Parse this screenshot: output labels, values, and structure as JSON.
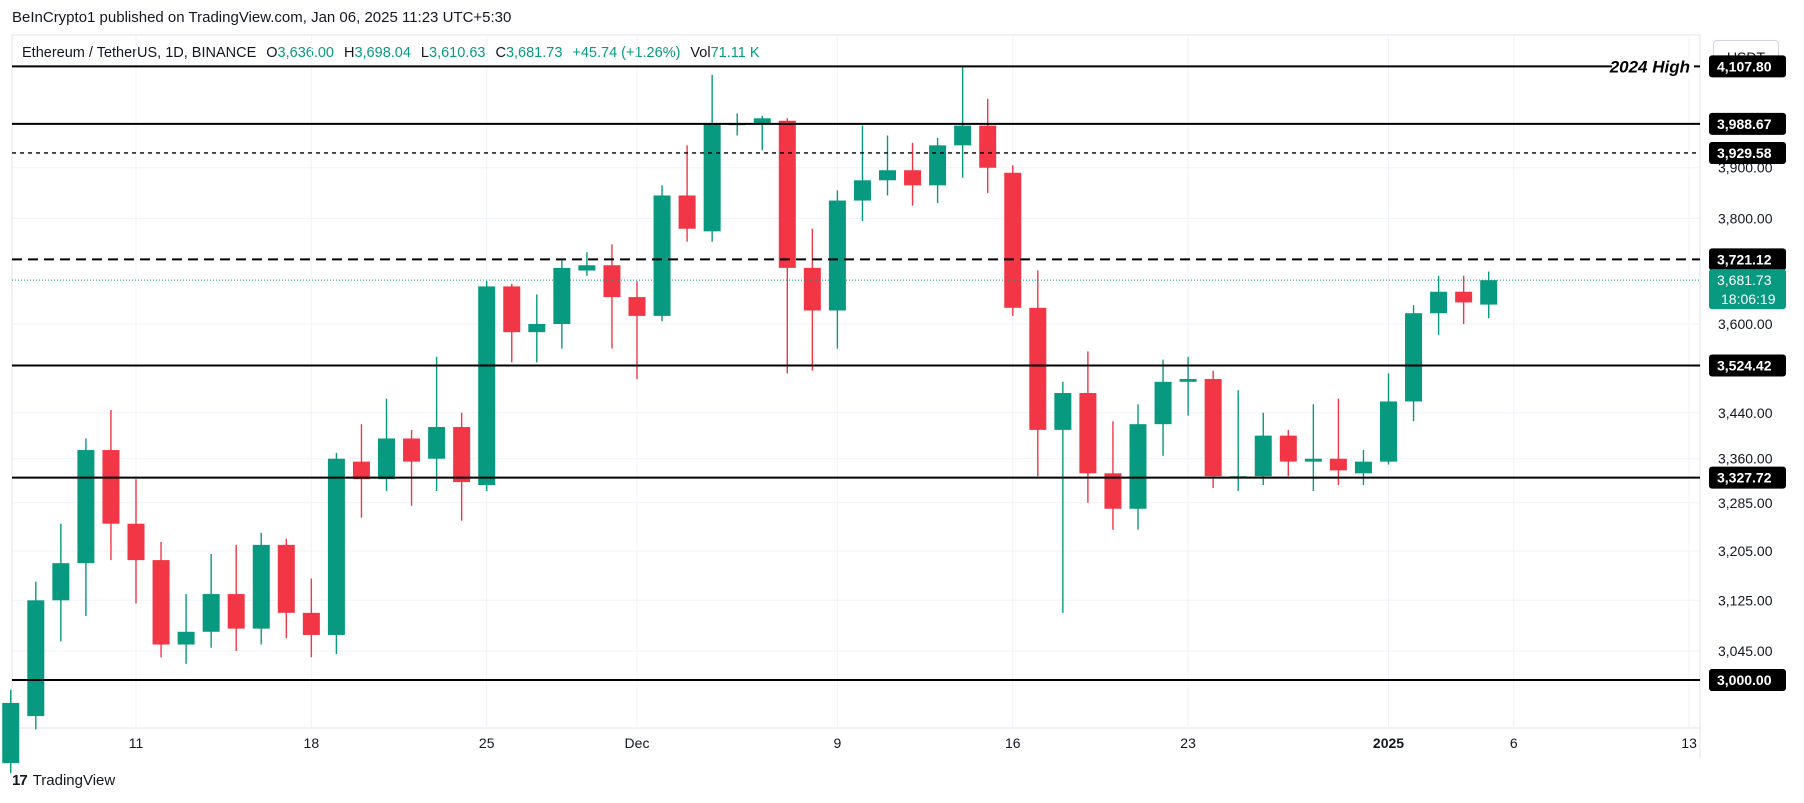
{
  "publisher": "BeInCrypto1 published on TradingView.com, Jan 06, 2025 11:23 UTC+5:30",
  "footer": {
    "brand": "TradingView",
    "logo": "17"
  },
  "currency_button": "USDT",
  "legend": {
    "symbol": "Ethereum / TetherUS, 1D, BINANCE",
    "o_label": "O",
    "o_value": "3,636.00",
    "h_label": "H",
    "h_value": "3,698.04",
    "l_label": "L",
    "l_value": "3,610.63",
    "c_label": "C",
    "c_value": "3,681.73",
    "change": "+45.74 (+1.26%)",
    "vol_label": "Vol",
    "vol_value": "71.11 K"
  },
  "colors": {
    "up": "#089981",
    "down": "#f23645",
    "level": "#000000",
    "grid": "#f0f3fa",
    "axis_text": "#131722"
  },
  "chart_data": {
    "type": "candlestick",
    "title": "Ethereum / TetherUS, 1D, BINANCE",
    "price_scale": "log",
    "y_ticks": [
      "3,045.00",
      "3,125.00",
      "3,205.00",
      "3,285.00",
      "3,360.00",
      "3,440.00",
      "3,600.00",
      "3,800.00",
      "3,900.00"
    ],
    "y_tick_values": [
      3045,
      3125,
      3205,
      3285,
      3360,
      3440,
      3600,
      3800,
      3900
    ],
    "x_ticks": [
      {
        "label": "11",
        "day": 11,
        "bold": false
      },
      {
        "label": "18",
        "day": 18,
        "bold": false
      },
      {
        "label": "25",
        "day": 25,
        "bold": false
      },
      {
        "label": "Dec",
        "day": 31,
        "bold": false
      },
      {
        "label": "9",
        "day": 39,
        "bold": false
      },
      {
        "label": "16",
        "day": 46,
        "bold": false
      },
      {
        "label": "23",
        "day": 53,
        "bold": false
      },
      {
        "label": "2025",
        "day": 61,
        "bold": true
      },
      {
        "label": "6",
        "day": 66,
        "bold": false
      },
      {
        "label": "13",
        "day": 73,
        "bold": false
      }
    ],
    "levels": [
      {
        "price": 4107.8,
        "label": "4,107.80",
        "style": "solid",
        "annotation": "2024 High"
      },
      {
        "price": 3988.67,
        "label": "3,988.67",
        "style": "solid"
      },
      {
        "price": 3929.58,
        "label": "3,929.58",
        "style": "dotted"
      },
      {
        "price": 3721.12,
        "label": "3,721.12",
        "style": "dashed"
      },
      {
        "price": 3524.42,
        "label": "3,524.42",
        "style": "solid"
      },
      {
        "price": 3327.72,
        "label": "3,327.72",
        "style": "solid"
      },
      {
        "price": 3000.0,
        "label": "3,000.00",
        "style": "solid"
      }
    ],
    "current_price": {
      "price": 3681.73,
      "label": "3,681.73",
      "countdown": "18:06:19"
    },
    "candles": [
      {
        "day": 6,
        "o": 2875,
        "h": 2985,
        "l": 2860,
        "c": 2965
      },
      {
        "day": 7,
        "o": 2945,
        "h": 3155,
        "l": 2925,
        "c": 3125
      },
      {
        "day": 8,
        "o": 3125,
        "h": 3250,
        "l": 3060,
        "c": 3185
      },
      {
        "day": 9,
        "o": 3185,
        "h": 3395,
        "l": 3100,
        "c": 3375
      },
      {
        "day": 10,
        "o": 3375,
        "h": 3445,
        "l": 3190,
        "c": 3250
      },
      {
        "day": 11,
        "o": 3250,
        "h": 3325,
        "l": 3120,
        "c": 3190
      },
      {
        "day": 12,
        "o": 3190,
        "h": 3220,
        "l": 3035,
        "c": 3055
      },
      {
        "day": 13,
        "o": 3055,
        "h": 3135,
        "l": 3025,
        "c": 3075
      },
      {
        "day": 14,
        "o": 3075,
        "h": 3200,
        "l": 3050,
        "c": 3135
      },
      {
        "day": 15,
        "o": 3135,
        "h": 3215,
        "l": 3045,
        "c": 3080
      },
      {
        "day": 16,
        "o": 3080,
        "h": 3235,
        "l": 3055,
        "c": 3215
      },
      {
        "day": 17,
        "o": 3215,
        "h": 3225,
        "l": 3065,
        "c": 3105
      },
      {
        "day": 18,
        "o": 3105,
        "h": 3160,
        "l": 3035,
        "c": 3070
      },
      {
        "day": 19,
        "o": 3070,
        "h": 3370,
        "l": 3040,
        "c": 3360
      },
      {
        "day": 20,
        "o": 3355,
        "h": 3420,
        "l": 3260,
        "c": 3325
      },
      {
        "day": 21,
        "o": 3325,
        "h": 3465,
        "l": 3305,
        "c": 3395
      },
      {
        "day": 22,
        "o": 3395,
        "h": 3410,
        "l": 3280,
        "c": 3355
      },
      {
        "day": 23,
        "o": 3360,
        "h": 3540,
        "l": 3305,
        "c": 3415
      },
      {
        "day": 24,
        "o": 3415,
        "h": 3440,
        "l": 3255,
        "c": 3320
      },
      {
        "day": 25,
        "o": 3315,
        "h": 3680,
        "l": 3305,
        "c": 3670
      },
      {
        "day": 26,
        "o": 3670,
        "h": 3675,
        "l": 3530,
        "c": 3585
      },
      {
        "day": 27,
        "o": 3585,
        "h": 3655,
        "l": 3530,
        "c": 3600
      },
      {
        "day": 28,
        "o": 3600,
        "h": 3720,
        "l": 3555,
        "c": 3705
      },
      {
        "day": 29,
        "o": 3700,
        "h": 3735,
        "l": 3690,
        "c": 3710
      },
      {
        "day": 30,
        "o": 3710,
        "h": 3750,
        "l": 3555,
        "c": 3650
      },
      {
        "day": 31,
        "o": 3650,
        "h": 3680,
        "l": 3500,
        "c": 3615
      },
      {
        "day": 32,
        "o": 3615,
        "h": 3865,
        "l": 3605,
        "c": 3845
      },
      {
        "day": 33,
        "o": 3845,
        "h": 3945,
        "l": 3755,
        "c": 3780
      },
      {
        "day": 34,
        "o": 3775,
        "h": 4090,
        "l": 3755,
        "c": 3990
      },
      {
        "day": 35,
        "o": 3990,
        "h": 4010,
        "l": 3965,
        "c": 3990
      },
      {
        "day": 36,
        "o": 3990,
        "h": 4005,
        "l": 3935,
        "c": 4000
      },
      {
        "day": 37,
        "o": 3995,
        "h": 4000,
        "l": 3510,
        "c": 3705
      },
      {
        "day": 38,
        "o": 3705,
        "h": 3780,
        "l": 3515,
        "c": 3625
      },
      {
        "day": 39,
        "o": 3625,
        "h": 3855,
        "l": 3555,
        "c": 3835
      },
      {
        "day": 40,
        "o": 3835,
        "h": 3985,
        "l": 3795,
        "c": 3875
      },
      {
        "day": 41,
        "o": 3875,
        "h": 3965,
        "l": 3845,
        "c": 3895
      },
      {
        "day": 42,
        "o": 3895,
        "h": 3950,
        "l": 3825,
        "c": 3865
      },
      {
        "day": 43,
        "o": 3865,
        "h": 3960,
        "l": 3830,
        "c": 3945
      },
      {
        "day": 44,
        "o": 3945,
        "h": 4108,
        "l": 3880,
        "c": 3985
      },
      {
        "day": 45,
        "o": 3985,
        "h": 4040,
        "l": 3850,
        "c": 3900
      },
      {
        "day": 46,
        "o": 3890,
        "h": 3905,
        "l": 3615,
        "c": 3630
      },
      {
        "day": 47,
        "o": 3630,
        "h": 3700,
        "l": 3330,
        "c": 3410
      },
      {
        "day": 48,
        "o": 3410,
        "h": 3495,
        "l": 3105,
        "c": 3475
      },
      {
        "day": 49,
        "o": 3475,
        "h": 3550,
        "l": 3285,
        "c": 3335
      },
      {
        "day": 50,
        "o": 3335,
        "h": 3425,
        "l": 3240,
        "c": 3275
      },
      {
        "day": 51,
        "o": 3275,
        "h": 3455,
        "l": 3240,
        "c": 3420
      },
      {
        "day": 52,
        "o": 3420,
        "h": 3535,
        "l": 3365,
        "c": 3495
      },
      {
        "day": 53,
        "o": 3495,
        "h": 3540,
        "l": 3435,
        "c": 3500
      },
      {
        "day": 54,
        "o": 3500,
        "h": 3515,
        "l": 3310,
        "c": 3330
      },
      {
        "day": 55,
        "o": 3330,
        "h": 3480,
        "l": 3305,
        "c": 3330
      },
      {
        "day": 56,
        "o": 3330,
        "h": 3440,
        "l": 3315,
        "c": 3400
      },
      {
        "day": 57,
        "o": 3400,
        "h": 3410,
        "l": 3330,
        "c": 3355
      },
      {
        "day": 58,
        "o": 3355,
        "h": 3455,
        "l": 3305,
        "c": 3360
      },
      {
        "day": 59,
        "o": 3360,
        "h": 3465,
        "l": 3315,
        "c": 3340
      },
      {
        "day": 60,
        "o": 3335,
        "h": 3375,
        "l": 3315,
        "c": 3355
      },
      {
        "day": 61,
        "o": 3355,
        "h": 3510,
        "l": 3350,
        "c": 3460
      },
      {
        "day": 62,
        "o": 3460,
        "h": 3635,
        "l": 3425,
        "c": 3620
      },
      {
        "day": 63,
        "o": 3620,
        "h": 3690,
        "l": 3580,
        "c": 3660
      },
      {
        "day": 64,
        "o": 3660,
        "h": 3690,
        "l": 3600,
        "c": 3640
      },
      {
        "day": 65,
        "o": 3636,
        "h": 3698.04,
        "l": 3610.63,
        "c": 3681.73
      }
    ]
  }
}
